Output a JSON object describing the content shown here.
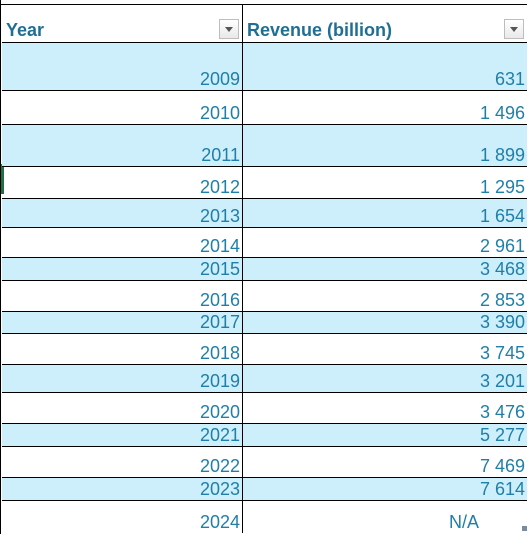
{
  "headers": {
    "year": "Year",
    "revenue": "Revenue (billion)"
  },
  "rows": [
    {
      "year": "2009",
      "revenue": "631"
    },
    {
      "year": "2010",
      "revenue": "1 496"
    },
    {
      "year": "2011",
      "revenue": "1 899"
    },
    {
      "year": "2012",
      "revenue": "1 295"
    },
    {
      "year": "2013",
      "revenue": "1 654"
    },
    {
      "year": "2014",
      "revenue": "2 961"
    },
    {
      "year": "2015",
      "revenue": "3 468"
    },
    {
      "year": "2016",
      "revenue": "2 853"
    },
    {
      "year": "2017",
      "revenue": "3 390"
    },
    {
      "year": "2018",
      "revenue": "3 745"
    },
    {
      "year": "2019",
      "revenue": "3 201"
    },
    {
      "year": "2020",
      "revenue": "3 476"
    },
    {
      "year": "2021",
      "revenue": "5 277"
    },
    {
      "year": "2022",
      "revenue": "7 469"
    },
    {
      "year": "2023",
      "revenue": "7 614"
    },
    {
      "year": "2024",
      "revenue": "N/A"
    }
  ],
  "colors": {
    "text": "#1f7fa8",
    "band": "#cdeefb",
    "grid": "#000000"
  }
}
